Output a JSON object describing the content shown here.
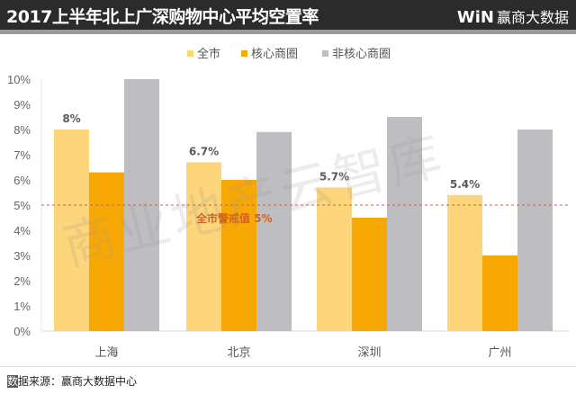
{
  "header": {
    "title": "2017上半年北上广深购物中心平均空置率",
    "logo_mark": "WiN",
    "logo_text": "赢商大数据"
  },
  "watermark": "商业地产云智库",
  "footer": {
    "source_first": "数",
    "source_rest": "据来源：赢商大数据中心"
  },
  "chart_data": {
    "type": "bar",
    "title": "2017上半年北上广深购物中心平均空置率",
    "categories": [
      "上海",
      "北京",
      "深圳",
      "广州"
    ],
    "series": [
      {
        "name": "全市",
        "color": "#FDD57A",
        "values": [
          8.0,
          6.7,
          5.7,
          5.4
        ],
        "labels": [
          "8%",
          "6.7%",
          "5.7%",
          "5.4%"
        ]
      },
      {
        "name": "核心商圈",
        "color": "#F8A805",
        "values": [
          6.3,
          6.0,
          4.5,
          3.0
        ]
      },
      {
        "name": "非核心商圈",
        "color": "#BEBDC2",
        "values": [
          10.0,
          7.9,
          8.5,
          8.0
        ]
      }
    ],
    "ylim": [
      0,
      10
    ],
    "yticks": [
      "0%",
      "1%",
      "2%",
      "3%",
      "4%",
      "5%",
      "6%",
      "7%",
      "8%",
      "9%",
      "10%"
    ],
    "legend": "top-center",
    "reference_line": {
      "value": 5,
      "label": "全市警戒值 5%",
      "color": "#D2621E"
    }
  }
}
